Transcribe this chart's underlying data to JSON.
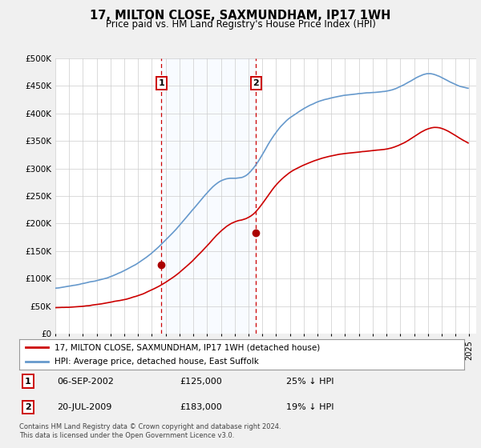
{
  "title": "17, MILTON CLOSE, SAXMUNDHAM, IP17 1WH",
  "subtitle": "Price paid vs. HM Land Registry's House Price Index (HPI)",
  "ylabel_ticks": [
    "£0",
    "£50K",
    "£100K",
    "£150K",
    "£200K",
    "£250K",
    "£300K",
    "£350K",
    "£400K",
    "£450K",
    "£500K"
  ],
  "ytick_values": [
    0,
    50000,
    100000,
    150000,
    200000,
    250000,
    300000,
    350000,
    400000,
    450000,
    500000
  ],
  "ylim": [
    0,
    500000
  ],
  "xlim_start": 1995.0,
  "xlim_end": 2025.5,
  "hpi_color": "#6699cc",
  "price_color": "#cc0000",
  "sale1_x": 2002.68,
  "sale1_y": 125000,
  "sale2_x": 2009.54,
  "sale2_y": 183000,
  "marker_color": "#aa0000",
  "shade_color": "#ddeeff",
  "label_sale": "17, MILTON CLOSE, SAXMUNDHAM, IP17 1WH (detached house)",
  "label_hpi": "HPI: Average price, detached house, East Suffolk",
  "grid_color": "#cccccc",
  "annotation1_label": "1",
  "annotation2_label": "2",
  "note1_date": "06-SEP-2002",
  "note1_price": "£125,000",
  "note1_hpi": "25% ↓ HPI",
  "note2_date": "20-JUL-2009",
  "note2_price": "£183,000",
  "note2_hpi": "19% ↓ HPI",
  "footer": "Contains HM Land Registry data © Crown copyright and database right 2024.\nThis data is licensed under the Open Government Licence v3.0.",
  "background_color": "#f0f0f0",
  "plot_bg_color": "#ffffff"
}
